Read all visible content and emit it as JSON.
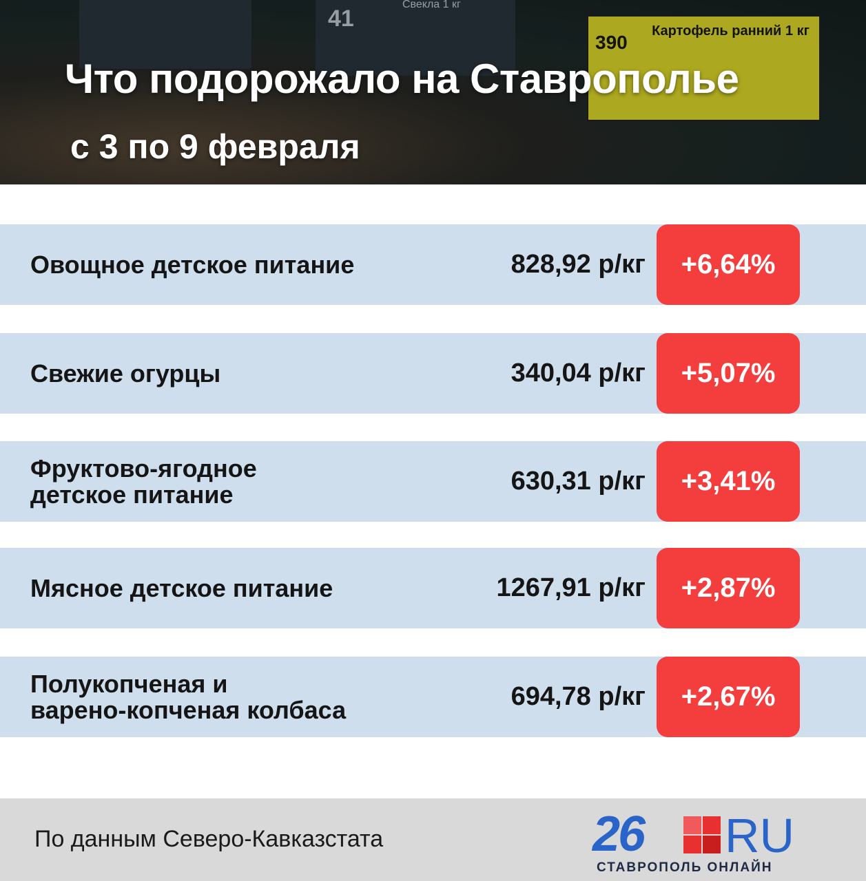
{
  "header": {
    "title": "Что подорожало на Ставрополье",
    "subtitle": "с 3 по 9 февраля",
    "photo_tags": [
      "41",
      "Свекла 1 кг",
      "390",
      "Картофель ранний 1 кг"
    ]
  },
  "table": {
    "rows": [
      [
        "Овощное детское питание",
        "828,92 р/кг",
        "+6,64%"
      ],
      [
        "Свежие огурцы",
        "340,04 р/кг",
        "+5,07%"
      ],
      [
        "Фруктово-ягодное\nдетское питание",
        "630,31 р/кг",
        "+3,41%"
      ],
      [
        "Мясное детское питание",
        "1267,91 р/кг",
        "+2,87%"
      ],
      [
        "Полукопченая и\nварено-копченая колбаса",
        "694,78 р/кг",
        "+2,67%"
      ]
    ]
  },
  "footer": {
    "source": "По данным Северо-Кавказстата",
    "logo_number": "26",
    "logo_domain": "RU",
    "logo_tagline": "СТАВРОПОЛЬ ОНЛАЙН"
  }
}
